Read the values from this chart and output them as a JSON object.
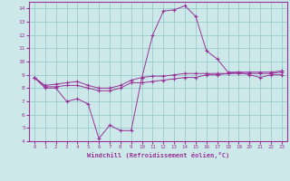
{
  "xlabel": "Windchill (Refroidissement éolien,°C)",
  "background_color": "#cce8e8",
  "grid_color": "#99cccc",
  "line_color": "#993399",
  "xlim": [
    -0.5,
    23.5
  ],
  "ylim": [
    4,
    14.5
  ],
  "xticks": [
    0,
    1,
    2,
    3,
    4,
    5,
    6,
    7,
    8,
    9,
    10,
    11,
    12,
    13,
    14,
    15,
    16,
    17,
    18,
    19,
    20,
    21,
    22,
    23
  ],
  "yticks": [
    4,
    5,
    6,
    7,
    8,
    9,
    10,
    11,
    12,
    13,
    14
  ],
  "line1_x": [
    0,
    1,
    2,
    3,
    4,
    5,
    6,
    7,
    8,
    9,
    10,
    11,
    12,
    13,
    14,
    15,
    16,
    17,
    18,
    19,
    20,
    21,
    22,
    23
  ],
  "line1_y": [
    8.8,
    8.0,
    8.0,
    7.0,
    7.2,
    6.8,
    4.2,
    5.2,
    4.8,
    4.8,
    8.8,
    12.0,
    13.8,
    13.9,
    14.2,
    13.4,
    10.8,
    10.2,
    9.2,
    9.2,
    9.0,
    8.8,
    9.0,
    9.0
  ],
  "line2_x": [
    0,
    1,
    2,
    3,
    4,
    5,
    6,
    7,
    8,
    9,
    10,
    11,
    12,
    13,
    14,
    15,
    16,
    17,
    18,
    19,
    20,
    21,
    22,
    23
  ],
  "line2_y": [
    8.8,
    8.1,
    8.1,
    8.2,
    8.2,
    8.0,
    7.8,
    7.8,
    8.0,
    8.4,
    8.4,
    8.5,
    8.6,
    8.7,
    8.8,
    8.8,
    9.0,
    9.0,
    9.1,
    9.1,
    9.1,
    9.1,
    9.1,
    9.2
  ],
  "line3_x": [
    0,
    1,
    2,
    3,
    4,
    5,
    6,
    7,
    8,
    9,
    10,
    11,
    12,
    13,
    14,
    15,
    16,
    17,
    18,
    19,
    20,
    21,
    22,
    23
  ],
  "line3_y": [
    8.8,
    8.2,
    8.3,
    8.4,
    8.5,
    8.2,
    8.0,
    8.0,
    8.2,
    8.6,
    8.8,
    8.9,
    8.9,
    9.0,
    9.1,
    9.1,
    9.1,
    9.1,
    9.1,
    9.2,
    9.2,
    9.2,
    9.2,
    9.3
  ]
}
